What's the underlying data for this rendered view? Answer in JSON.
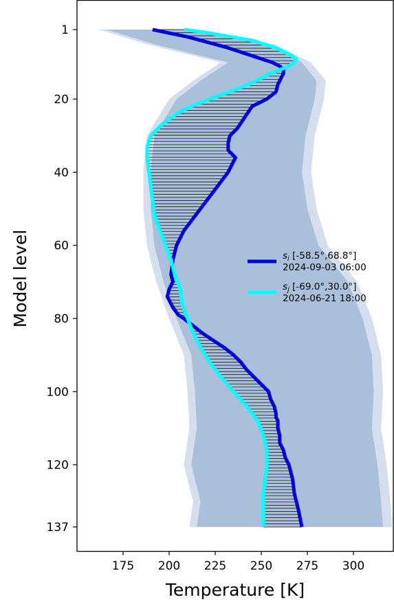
{
  "chart_data": {
    "type": "line",
    "title": "",
    "xlabel": "Temperature [K]",
    "ylabel": "Model level",
    "xlim": [
      157,
      322
    ],
    "ylim": [
      137,
      1
    ],
    "y_inverted": true,
    "grid": false,
    "legend_position": "center-right",
    "xticks": [
      175,
      200,
      225,
      250,
      275,
      300
    ],
    "yticks": [
      1,
      20,
      40,
      60,
      80,
      100,
      120,
      137
    ],
    "colors": {
      "ensemble_band": "#aabfd9",
      "ensemble_edge": "#c9d6e8",
      "series_i": "#0000dd",
      "series_j": "#00ffff",
      "hatch": "#000000"
    },
    "ensemble_envelope": {
      "description_visible": false,
      "levels": [
        1,
        5,
        10,
        15,
        20,
        30,
        40,
        50,
        60,
        70,
        80,
        90,
        100,
        110,
        120,
        130,
        137
      ],
      "min": [
        164,
        190,
        230,
        215,
        202,
        190,
        188,
        188,
        190,
        195,
        202,
        210,
        212,
        213,
        210,
        215,
        213
      ],
      "max": [
        215,
        255,
        275,
        283,
        282,
        277,
        275,
        278,
        284,
        300,
        308,
        313,
        314,
        313,
        316,
        318,
        319
      ]
    },
    "series": [
      {
        "name": "s_i [-58.5°,68.8°]",
        "legend_subscript": "i",
        "legend_coords": " [-58.5°,68.8°]",
        "legend_date": "2024-09-03 06:00",
        "color": "#0000dd",
        "levels": [
          1,
          3,
          6,
          9,
          10,
          11,
          12,
          13,
          14,
          16,
          18,
          20,
          22,
          25,
          28,
          30,
          32,
          34,
          36,
          38,
          40,
          44,
          48,
          52,
          56,
          60,
          64,
          68,
          70,
          72,
          74,
          75,
          77,
          79,
          80,
          82,
          84,
          86,
          88,
          90,
          92,
          94,
          96,
          98,
          100,
          102,
          104,
          106,
          107,
          108,
          110,
          112,
          114,
          116,
          118,
          120,
          124,
          128,
          132,
          137
        ],
        "values": [
          191,
          210,
          232,
          250,
          256,
          260,
          262,
          262,
          261,
          259,
          258,
          253,
          245,
          241,
          237,
          233,
          232,
          232,
          236,
          234,
          232,
          226,
          220,
          214,
          208,
          204,
          202,
          201,
          202,
          200,
          199,
          200,
          202,
          205,
          208,
          213,
          218,
          224,
          230,
          235,
          239,
          242,
          246,
          250,
          254,
          255,
          257,
          258,
          258,
          259,
          259,
          260,
          260,
          262,
          263,
          265,
          267,
          268,
          270,
          272
        ]
      },
      {
        "name": "s_j [-69.0°,30.0°]",
        "legend_subscript": "j",
        "legend_coords": " [-69.0°,30.0°]",
        "legend_date": "2024-06-21 18:00",
        "color": "#00ffff",
        "levels": [
          1,
          2,
          4,
          6,
          8,
          9,
          10,
          11,
          12,
          13,
          14,
          16,
          18,
          20,
          22,
          24,
          27,
          30,
          33,
          36,
          40,
          44,
          48,
          52,
          56,
          60,
          64,
          68,
          72,
          76,
          80,
          84,
          88,
          92,
          96,
          100,
          104,
          108,
          112,
          116,
          120,
          124,
          128,
          132,
          137
        ],
        "values": [
          208,
          222,
          245,
          258,
          266,
          269,
          268,
          265,
          260,
          255,
          251,
          243,
          233,
          222,
          212,
          204,
          196,
          190,
          188,
          188,
          189,
          190,
          191,
          192,
          195,
          198,
          201,
          203,
          206,
          207,
          210,
          213,
          217,
          222,
          228,
          235,
          242,
          248,
          251,
          253,
          253,
          252,
          251,
          251,
          251
        ]
      }
    ]
  }
}
